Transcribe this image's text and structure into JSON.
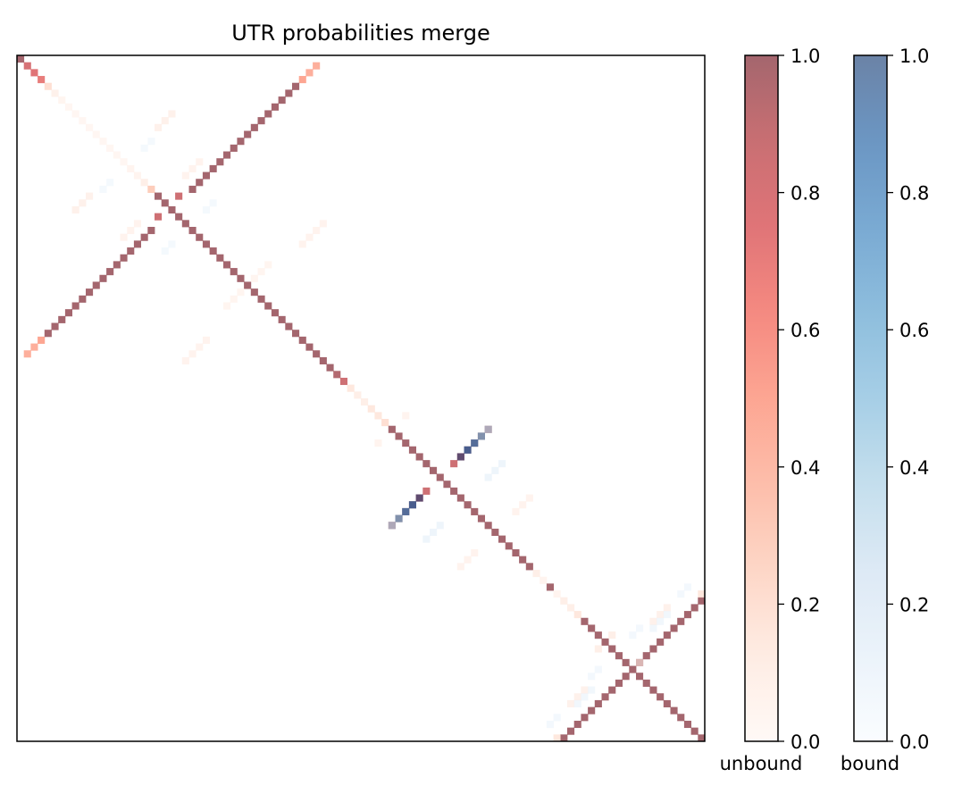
{
  "chart_data": {
    "type": "heatmap",
    "title": "UTR probabilities merge",
    "n": 100,
    "grid": false,
    "alpha": 0.6,
    "colorbars": [
      {
        "name": "unbound",
        "label": "unbound",
        "colormap": "Reds",
        "range": [
          0,
          1
        ],
        "ticks": [
          "0.0",
          "0.2",
          "0.4",
          "0.6",
          "0.8",
          "1.0"
        ]
      },
      {
        "name": "bound",
        "label": "bound",
        "colormap": "Blues",
        "range": [
          0,
          1
        ],
        "ticks": [
          "0.0",
          "0.2",
          "0.4",
          "0.6",
          "0.8",
          "1.0"
        ]
      }
    ],
    "unbound_cells": [
      [
        0,
        0,
        1
      ],
      [
        1,
        1,
        0.8
      ],
      [
        2,
        2,
        0.75
      ],
      [
        3,
        3,
        0.7
      ],
      [
        4,
        4,
        0.2
      ],
      [
        5,
        5,
        0.08
      ],
      [
        6,
        6,
        0.04
      ],
      [
        7,
        7,
        0.03
      ],
      [
        8,
        8,
        0.03
      ],
      [
        9,
        9,
        0.03
      ],
      [
        10,
        10,
        0.03
      ],
      [
        11,
        11,
        0.03
      ],
      [
        12,
        12,
        0.03
      ],
      [
        13,
        13,
        0.03
      ],
      [
        14,
        14,
        0.03
      ],
      [
        15,
        15,
        0.03
      ],
      [
        16,
        16,
        0.05
      ],
      [
        17,
        17,
        0.05
      ],
      [
        18,
        18,
        0.1
      ],
      [
        19,
        19,
        0.3
      ],
      [
        20,
        20,
        1
      ],
      [
        21,
        21,
        1
      ],
      [
        22,
        22,
        1
      ],
      [
        23,
        23,
        1
      ],
      [
        24,
        24,
        1
      ],
      [
        25,
        25,
        1
      ],
      [
        26,
        26,
        1
      ],
      [
        27,
        27,
        1
      ],
      [
        28,
        28,
        1
      ],
      [
        29,
        29,
        1
      ],
      [
        30,
        30,
        1
      ],
      [
        31,
        31,
        1
      ],
      [
        32,
        32,
        1
      ],
      [
        33,
        33,
        1
      ],
      [
        34,
        34,
        1
      ],
      [
        35,
        35,
        1
      ],
      [
        36,
        36,
        1
      ],
      [
        37,
        37,
        1
      ],
      [
        38,
        38,
        1
      ],
      [
        39,
        39,
        1
      ],
      [
        40,
        40,
        1
      ],
      [
        41,
        41,
        1
      ],
      [
        42,
        42,
        1
      ],
      [
        43,
        43,
        1
      ],
      [
        44,
        44,
        1
      ],
      [
        45,
        45,
        1
      ],
      [
        46,
        46,
        0.95
      ],
      [
        47,
        47,
        0.85
      ],
      [
        48,
        48,
        0.15
      ],
      [
        49,
        49,
        0.1
      ],
      [
        50,
        50,
        0.1
      ],
      [
        51,
        51,
        0.15
      ],
      [
        52,
        52,
        0.15
      ],
      [
        53,
        53,
        0.2
      ],
      [
        54,
        54,
        1
      ],
      [
        55,
        55,
        1
      ],
      [
        56,
        56,
        1
      ],
      [
        57,
        57,
        1
      ],
      [
        58,
        58,
        1
      ],
      [
        59,
        59,
        1
      ],
      [
        60,
        60,
        1
      ],
      [
        61,
        61,
        1
      ],
      [
        62,
        62,
        1
      ],
      [
        63,
        63,
        1
      ],
      [
        64,
        64,
        1
      ],
      [
        65,
        65,
        1
      ],
      [
        66,
        66,
        1
      ],
      [
        67,
        67,
        1
      ],
      [
        68,
        68,
        1
      ],
      [
        69,
        69,
        1
      ],
      [
        70,
        70,
        1
      ],
      [
        71,
        71,
        1
      ],
      [
        72,
        72,
        1
      ],
      [
        73,
        73,
        1
      ],
      [
        74,
        74,
        1
      ],
      [
        75,
        75,
        0.1
      ],
      [
        76,
        76,
        0.05
      ],
      [
        77,
        77,
        1
      ],
      [
        78,
        78,
        0.05
      ],
      [
        79,
        79,
        0.1
      ],
      [
        80,
        80,
        0.1
      ],
      [
        81,
        81,
        0.15
      ],
      [
        82,
        82,
        1
      ],
      [
        83,
        83,
        1
      ],
      [
        84,
        84,
        1
      ],
      [
        85,
        85,
        1
      ],
      [
        86,
        86,
        1
      ],
      [
        87,
        87,
        1
      ],
      [
        88,
        88,
        1
      ],
      [
        89,
        89,
        1
      ],
      [
        90,
        90,
        1
      ],
      [
        91,
        91,
        1
      ],
      [
        92,
        92,
        1
      ],
      [
        93,
        93,
        1
      ],
      [
        94,
        94,
        1
      ],
      [
        95,
        95,
        1
      ],
      [
        96,
        96,
        1
      ],
      [
        97,
        97,
        1
      ],
      [
        98,
        98,
        1
      ],
      [
        99,
        99,
        1
      ],
      [
        1,
        43,
        0.45
      ],
      [
        2,
        42,
        0.45
      ],
      [
        3,
        41,
        0.5
      ],
      [
        43,
        1,
        0.45
      ],
      [
        42,
        2,
        0.45
      ],
      [
        41,
        3,
        0.5
      ],
      [
        4,
        40,
        1
      ],
      [
        5,
        39,
        1
      ],
      [
        6,
        38,
        1
      ],
      [
        7,
        37,
        1
      ],
      [
        8,
        36,
        1
      ],
      [
        9,
        35,
        1
      ],
      [
        10,
        34,
        1
      ],
      [
        11,
        33,
        1
      ],
      [
        12,
        32,
        1
      ],
      [
        13,
        31,
        1
      ],
      [
        14,
        30,
        1
      ],
      [
        15,
        29,
        1
      ],
      [
        16,
        28,
        1
      ],
      [
        17,
        27,
        1
      ],
      [
        18,
        26,
        1
      ],
      [
        19,
        25,
        1
      ],
      [
        40,
        4,
        1
      ],
      [
        39,
        5,
        1
      ],
      [
        38,
        6,
        1
      ],
      [
        37,
        7,
        1
      ],
      [
        36,
        8,
        1
      ],
      [
        35,
        9,
        1
      ],
      [
        34,
        10,
        1
      ],
      [
        33,
        11,
        1
      ],
      [
        32,
        12,
        1
      ],
      [
        31,
        13,
        1
      ],
      [
        30,
        14,
        1
      ],
      [
        29,
        15,
        1
      ],
      [
        28,
        16,
        1
      ],
      [
        27,
        17,
        1
      ],
      [
        26,
        18,
        1
      ],
      [
        25,
        19,
        1
      ],
      [
        20,
        23,
        0.85
      ],
      [
        23,
        20,
        0.85
      ],
      [
        54,
        68,
        1
      ],
      [
        55,
        67,
        1
      ],
      [
        56,
        66,
        1
      ],
      [
        57,
        65,
        1
      ],
      [
        58,
        64,
        0.75
      ],
      [
        59,
        63,
        0.85
      ],
      [
        68,
        54,
        1
      ],
      [
        67,
        55,
        1
      ],
      [
        66,
        56,
        1
      ],
      [
        65,
        57,
        1
      ],
      [
        64,
        58,
        0.75
      ],
      [
        63,
        59,
        0.85
      ],
      [
        79,
        99,
        1
      ],
      [
        80,
        98,
        1
      ],
      [
        81,
        97,
        1
      ],
      [
        82,
        96,
        1
      ],
      [
        83,
        95,
        1
      ],
      [
        84,
        94,
        1
      ],
      [
        85,
        93,
        1
      ],
      [
        86,
        92,
        1
      ],
      [
        87,
        91,
        1
      ],
      [
        88,
        90,
        1
      ],
      [
        99,
        79,
        1
      ],
      [
        98,
        80,
        1
      ],
      [
        97,
        81,
        1
      ],
      [
        96,
        82,
        1
      ],
      [
        95,
        83,
        1
      ],
      [
        94,
        84,
        1
      ],
      [
        93,
        85,
        1
      ],
      [
        92,
        86,
        1
      ],
      [
        91,
        87,
        1
      ],
      [
        90,
        88,
        1
      ],
      [
        8,
        22,
        0.08
      ],
      [
        9,
        21,
        0.08
      ],
      [
        10,
        20,
        0.08
      ],
      [
        22,
        8,
        0.08
      ],
      [
        21,
        9,
        0.08
      ],
      [
        20,
        10,
        0.08
      ],
      [
        15,
        26,
        0.06
      ],
      [
        16,
        25,
        0.06
      ],
      [
        17,
        24,
        0.06
      ],
      [
        26,
        15,
        0.06
      ],
      [
        25,
        16,
        0.06
      ],
      [
        24,
        17,
        0.06
      ],
      [
        24,
        44,
        0.06
      ],
      [
        25,
        43,
        0.06
      ],
      [
        26,
        42,
        0.06
      ],
      [
        27,
        41,
        0.06
      ],
      [
        44,
        24,
        0.06
      ],
      [
        43,
        25,
        0.06
      ],
      [
        42,
        26,
        0.06
      ],
      [
        41,
        27,
        0.06
      ],
      [
        30,
        36,
        0.04
      ],
      [
        31,
        35,
        0.04
      ],
      [
        32,
        34,
        0.04
      ],
      [
        36,
        30,
        0.04
      ],
      [
        35,
        31,
        0.04
      ],
      [
        34,
        32,
        0.04
      ],
      [
        64,
        74,
        0.06
      ],
      [
        65,
        73,
        0.06
      ],
      [
        66,
        72,
        0.06
      ],
      [
        74,
        64,
        0.06
      ],
      [
        73,
        65,
        0.06
      ],
      [
        72,
        66,
        0.06
      ],
      [
        78,
        99,
        0.15
      ],
      [
        99,
        78,
        0.15
      ],
      [
        84,
        86,
        0.1
      ],
      [
        86,
        84,
        0.1
      ],
      [
        88,
        90,
        0.06
      ],
      [
        80,
        94,
        0.08
      ],
      [
        81,
        93,
        0.08
      ],
      [
        82,
        92,
        0.08
      ],
      [
        94,
        80,
        0.08
      ],
      [
        93,
        81,
        0.08
      ],
      [
        92,
        82,
        0.08
      ],
      [
        76,
        100,
        0.04
      ],
      [
        100,
        76,
        0.04
      ],
      [
        52,
        56,
        0.05
      ],
      [
        56,
        52,
        0.05
      ]
    ],
    "bound_cells": [
      [
        58,
        64,
        1
      ],
      [
        57,
        65,
        0.85
      ],
      [
        56,
        66,
        0.75
      ],
      [
        55,
        67,
        0.5
      ],
      [
        54,
        68,
        0.3
      ],
      [
        64,
        58,
        1
      ],
      [
        65,
        57,
        0.85
      ],
      [
        66,
        56,
        0.75
      ],
      [
        67,
        55,
        0.5
      ],
      [
        68,
        54,
        0.3
      ],
      [
        59,
        70,
        0.1
      ],
      [
        60,
        69,
        0.1
      ],
      [
        61,
        68,
        0.1
      ],
      [
        70,
        59,
        0.1
      ],
      [
        69,
        60,
        0.1
      ],
      [
        68,
        61,
        0.1
      ],
      [
        81,
        94,
        0.08
      ],
      [
        82,
        93,
        0.08
      ],
      [
        83,
        92,
        0.08
      ],
      [
        94,
        81,
        0.08
      ],
      [
        93,
        82,
        0.08
      ],
      [
        92,
        83,
        0.08
      ],
      [
        83,
        90,
        0.06
      ],
      [
        84,
        89,
        0.06
      ],
      [
        90,
        83,
        0.06
      ],
      [
        89,
        84,
        0.06
      ],
      [
        18,
        13,
        0.05
      ],
      [
        19,
        12,
        0.05
      ],
      [
        13,
        18,
        0.05
      ],
      [
        12,
        19,
        0.05
      ],
      [
        21,
        28,
        0.05
      ],
      [
        22,
        27,
        0.05
      ],
      [
        28,
        21,
        0.05
      ],
      [
        27,
        22,
        0.05
      ],
      [
        96,
        78,
        0.06
      ],
      [
        97,
        77,
        0.06
      ],
      [
        78,
        96,
        0.06
      ],
      [
        77,
        97,
        0.06
      ]
    ]
  }
}
